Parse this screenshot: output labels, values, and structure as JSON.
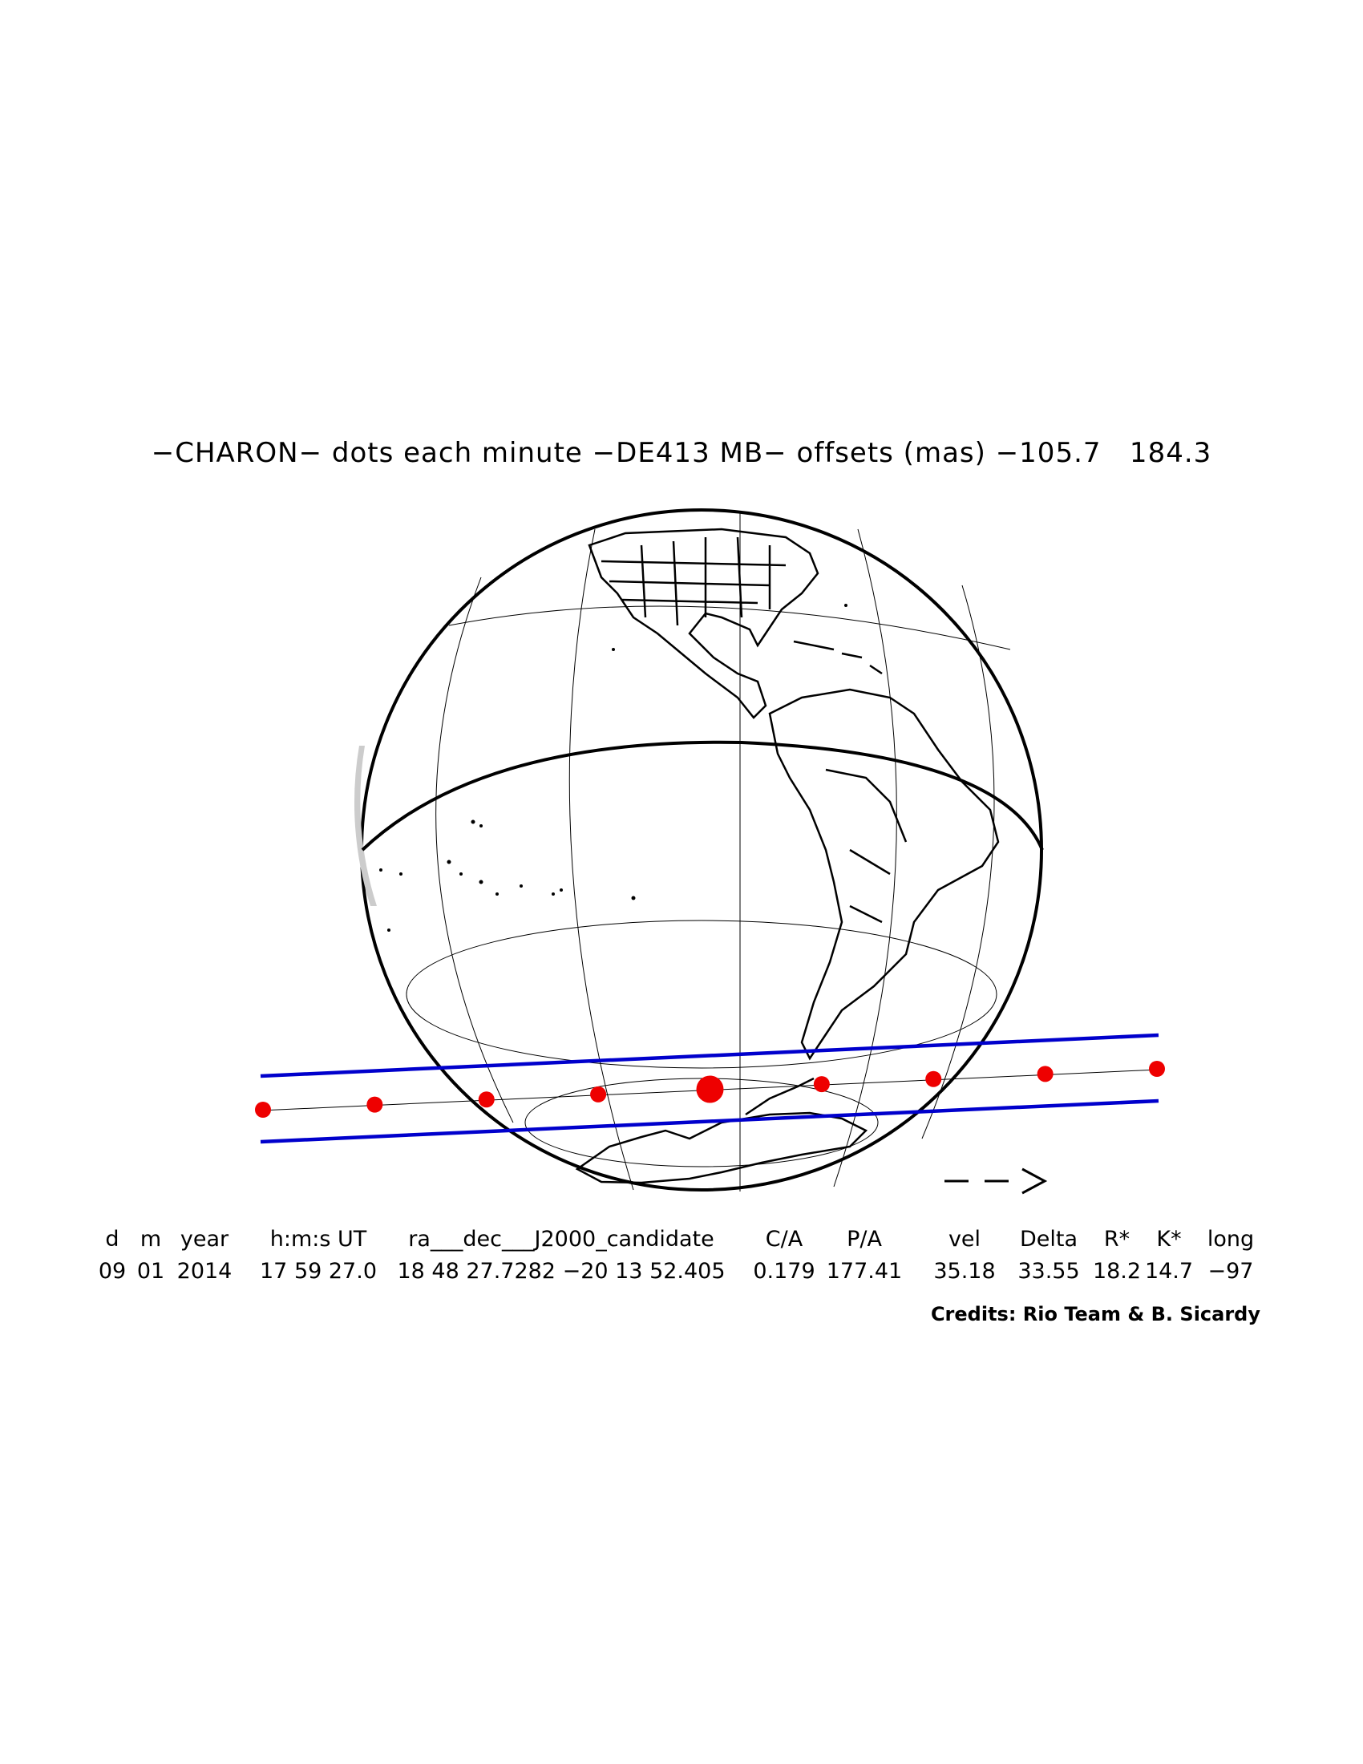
{
  "title": "−CHARON− dots each minute −DE413 MB− offsets (mas) −105.7   184.3",
  "direction_arrow": "− −>",
  "table": {
    "headers": [
      "d",
      "m",
      "year",
      "h:m:s UT",
      "ra___dec___J2000_candidate",
      "C/A",
      "P/A",
      "vel",
      "Delta",
      "R*",
      "K*",
      "long"
    ],
    "values": [
      "09",
      "01",
      "2014",
      "17 59 27.0",
      "18 48 27.7282 −20 13 52.405",
      "0.179",
      "177.41",
      "35.18",
      "33.55",
      "18.2",
      "14.7",
      "−97"
    ]
  },
  "credits": "Credits: Rio Team & B. Sicardy",
  "colors": {
    "shadow_limits": "#0000cc",
    "center_dots": "#ee0000",
    "outline": "#000000"
  },
  "icons": [
    "globe-map",
    "direction-arrow-icon"
  ],
  "center_path": {
    "dots_per_minute": 1,
    "dot_count": 9,
    "closest_approach_index": 4
  }
}
